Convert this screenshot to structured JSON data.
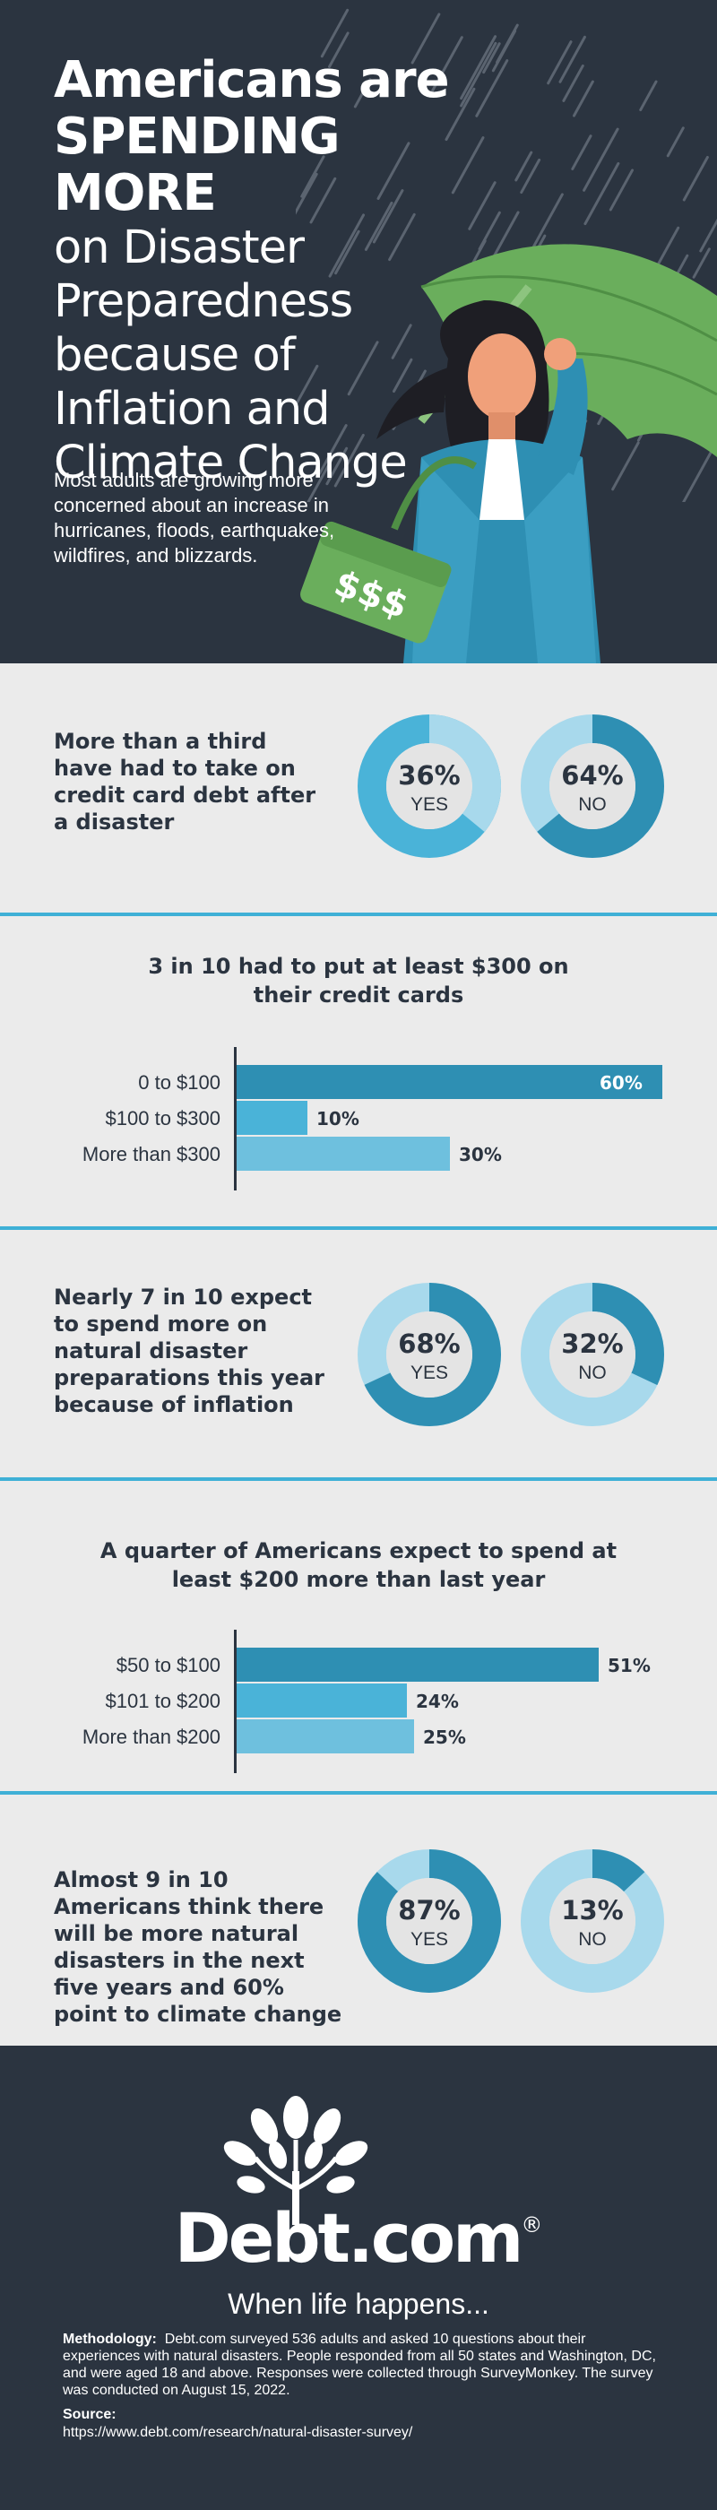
{
  "hero": {
    "title_bold_1": "Americans are",
    "title_bold_2": "SPENDING MORE",
    "title_light_1": "on Disaster",
    "title_light_2": "Preparedness",
    "title_light_3": "because of",
    "title_light_4": "Inflation and",
    "title_light_5": "Climate Change",
    "subtitle": "Most adults are growing more concerned about an increase in hurricanes, floods, earthquakes, wildfires, and blizzards.",
    "bag_label": "$$$"
  },
  "colors": {
    "dark_bg": "#2b3440",
    "panel_bg": "#ebebeb",
    "accent_dark": "#2e8fb3",
    "accent_mid": "#4ab3d8",
    "accent_light": "#a8d9ec",
    "divider": "#3fb0d6",
    "umbrella": "#6aae5c"
  },
  "sections": [
    {
      "text": "More than a third have had to take on credit card debt after a disaster",
      "donuts": [
        {
          "pct": "36%",
          "label": "YES",
          "value": 36,
          "highlight": "light"
        },
        {
          "pct": "64%",
          "label": "NO",
          "value": 64,
          "highlight": "dark"
        }
      ]
    },
    {
      "text": "Nearly 7 in 10 expect to spend more on natural disaster preparations this year because of inflation",
      "donuts": [
        {
          "pct": "68%",
          "label": "YES",
          "value": 68,
          "highlight": "dark"
        },
        {
          "pct": "32%",
          "label": "NO",
          "value": 32,
          "highlight": "dark"
        }
      ]
    },
    {
      "text": "Almost 9 in 10 Americans think there will be more natural disasters in the next five years and 60% point to climate change",
      "donuts": [
        {
          "pct": "87%",
          "label": "YES",
          "value": 87,
          "highlight": "dark"
        },
        {
          "pct": "13%",
          "label": "NO",
          "value": 13,
          "highlight": "dark"
        }
      ]
    }
  ],
  "chart_data": [
    {
      "type": "bar",
      "title": "3 in 10 had to put at least $300 on their credit cards",
      "categories": [
        "0 to $100",
        "$100 to $300",
        "More than $300"
      ],
      "values": [
        60,
        10,
        30
      ],
      "value_labels": [
        "60%",
        "10%",
        "30%"
      ],
      "xlim": [
        0,
        60
      ],
      "colors": [
        "#2e8fb3",
        "#4ab3d8",
        "#6ec0de"
      ]
    },
    {
      "type": "bar",
      "title": "A quarter of Americans expect to spend at least $200 more than last year",
      "categories": [
        "$50 to $100",
        "$101 to $200",
        "More than $200"
      ],
      "values": [
        51,
        24,
        25
      ],
      "value_labels": [
        "51%",
        "24%",
        "25%"
      ],
      "xlim": [
        0,
        60
      ],
      "colors": [
        "#2e8fb3",
        "#4ab3d8",
        "#6ec0de"
      ]
    }
  ],
  "footer": {
    "logo_text": "Debt.com",
    "logo_reg": "®",
    "tagline": "When life happens...",
    "methodology_label": "Methodology:",
    "methodology_text": "Debt.com surveyed 536 adults and asked 10 questions about their experiences with natural disasters. People responded from all 50 states and Washington, DC, and were aged 18 and above. Responses were collected through SurveyMonkey. The survey was conducted on August 15, 2022.",
    "source_label": "Source:",
    "source_url": "https://www.debt.com/research/natural-disaster-survey/"
  }
}
